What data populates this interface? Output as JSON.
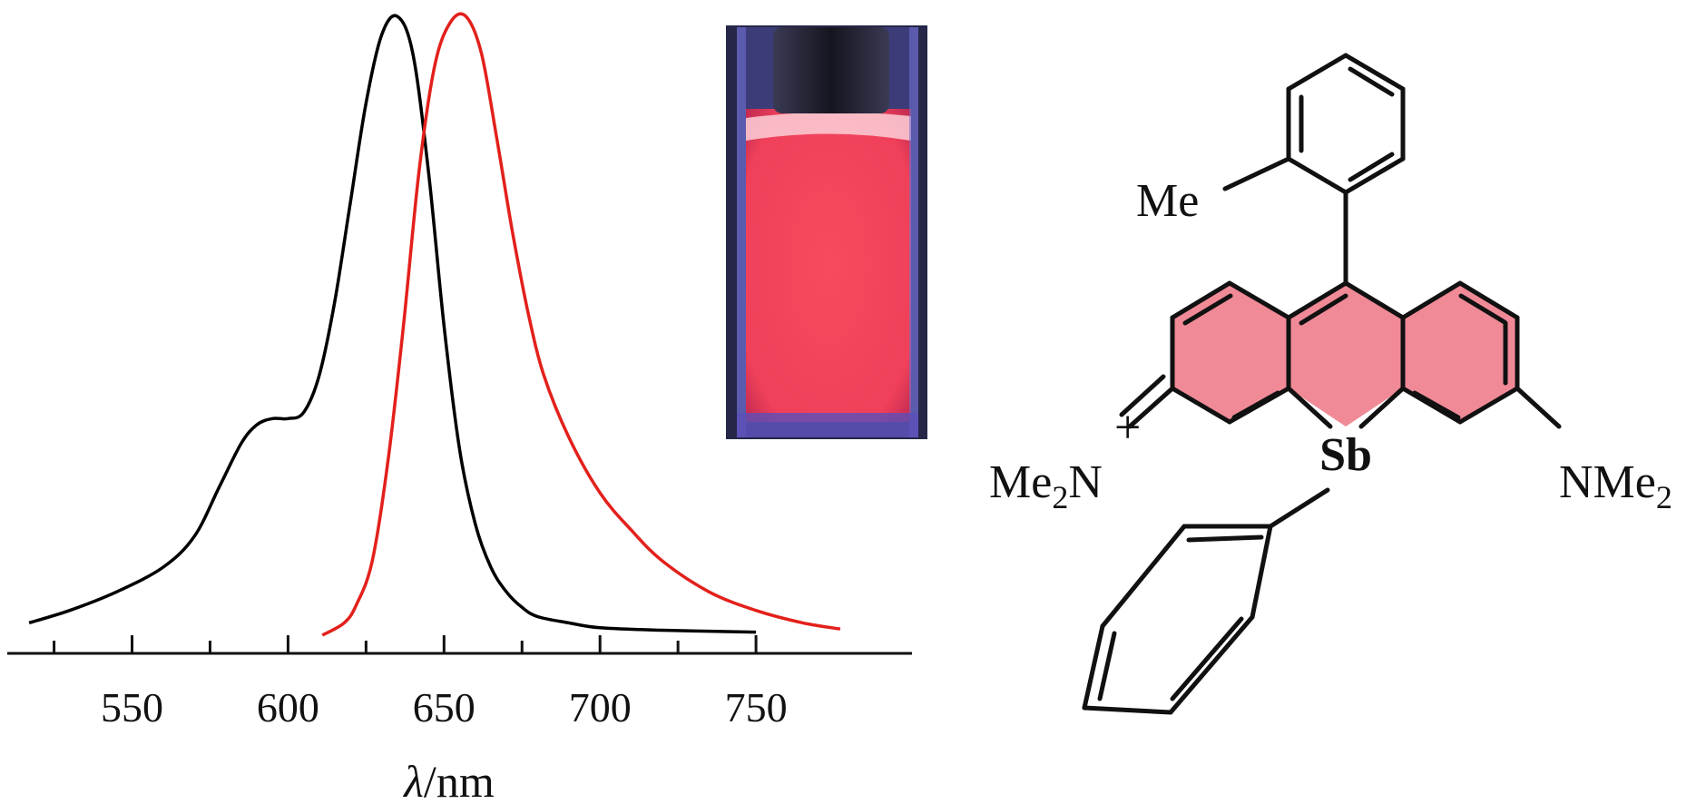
{
  "chart_data": {
    "type": "line",
    "xlabel_symbol": "λ",
    "xlabel_unit": "/nm",
    "x_tick_labels": [
      "550",
      "600",
      "650",
      "700",
      "750"
    ],
    "x_ticks": [
      550,
      600,
      650,
      700,
      750
    ],
    "x_minor_ticks": [
      525,
      575,
      625,
      675,
      725
    ],
    "xlim": [
      510,
      800
    ],
    "ylim": [
      0,
      1.0
    ],
    "grid": false,
    "legend": "none",
    "series": [
      {
        "color": "#000000",
        "x": [
          517,
          530,
          545,
          560,
          570,
          578,
          585,
          590,
          595,
          600,
          605,
          610,
          615,
          620,
          625,
          630,
          635,
          640,
          645,
          650,
          655,
          660,
          665,
          670,
          675,
          680,
          690,
          700,
          720,
          750
        ],
        "y": [
          0.02,
          0.04,
          0.07,
          0.11,
          0.16,
          0.24,
          0.31,
          0.34,
          0.35,
          0.35,
          0.36,
          0.42,
          0.54,
          0.7,
          0.86,
          0.97,
          1.0,
          0.94,
          0.75,
          0.5,
          0.3,
          0.18,
          0.11,
          0.07,
          0.045,
          0.03,
          0.02,
          0.012,
          0.008,
          0.005
        ]
      },
      {
        "color": "#e3201b",
        "x": [
          611,
          618,
          622,
          627,
          632,
          637,
          642,
          647,
          652,
          657,
          662,
          667,
          672,
          677,
          682,
          690,
          700,
          710,
          720,
          735,
          750,
          765,
          777
        ],
        "y": [
          0.0,
          0.02,
          0.05,
          0.12,
          0.28,
          0.5,
          0.75,
          0.92,
          0.99,
          1.0,
          0.94,
          0.8,
          0.65,
          0.52,
          0.42,
          0.32,
          0.23,
          0.17,
          0.12,
          0.07,
          0.04,
          0.02,
          0.01
        ]
      }
    ]
  },
  "structure": {
    "sb_label": "Sb",
    "me_label": "Me",
    "left_amine": {
      "me": "Me",
      "sub": "2",
      "n": "N",
      "charge": "+"
    },
    "right_amine": {
      "text": "NMe",
      "sub": "2"
    },
    "highlight_color": "#f08a97"
  },
  "photo": {
    "liquid_color": "#f2455a",
    "background_color": "#2a2a4a"
  }
}
